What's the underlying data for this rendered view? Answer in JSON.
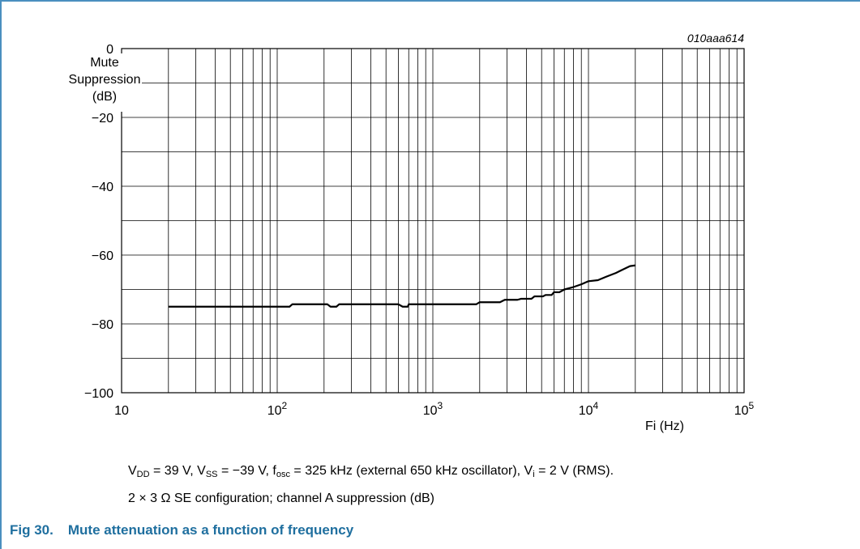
{
  "chart_data": {
    "type": "line",
    "figure_id": "010aaa614",
    "ylabel_lines": [
      "Mute",
      "Suppression",
      "(dB)"
    ],
    "xlabel": "Fi (Hz)",
    "x_scale": "log",
    "xlim": [
      10,
      100000
    ],
    "ylim": [
      -100,
      0
    ],
    "x_ticks": [
      {
        "value": 10,
        "base": "10",
        "exp": ""
      },
      {
        "value": 100,
        "base": "10",
        "exp": "2"
      },
      {
        "value": 1000,
        "base": "10",
        "exp": "3"
      },
      {
        "value": 10000,
        "base": "10",
        "exp": "4"
      },
      {
        "value": 100000,
        "base": "10",
        "exp": "5"
      }
    ],
    "y_ticks": [
      {
        "value": 0,
        "label": "0"
      },
      {
        "value": -20,
        "label": "−20"
      },
      {
        "value": -40,
        "label": "−40"
      },
      {
        "value": -60,
        "label": "−60"
      },
      {
        "value": -80,
        "label": "−80"
      },
      {
        "value": -100,
        "label": "−100"
      }
    ],
    "y_minor_step": 10,
    "grid": true,
    "series": [
      {
        "points": [
          [
            20,
            -75
          ],
          [
            60,
            -75
          ],
          [
            120,
            -75
          ],
          [
            125,
            -74.3
          ],
          [
            210,
            -74.3
          ],
          [
            220,
            -75
          ],
          [
            240,
            -75
          ],
          [
            250,
            -74.3
          ],
          [
            600,
            -74.3
          ],
          [
            640,
            -75
          ],
          [
            690,
            -75
          ],
          [
            700,
            -74.3
          ],
          [
            1900,
            -74.3
          ],
          [
            2000,
            -73.7
          ],
          [
            2700,
            -73.7
          ],
          [
            2900,
            -73
          ],
          [
            3500,
            -73
          ],
          [
            3700,
            -72.7
          ],
          [
            4300,
            -72.7
          ],
          [
            4500,
            -72
          ],
          [
            5100,
            -72
          ],
          [
            5300,
            -71.6
          ],
          [
            5800,
            -71.6
          ],
          [
            6000,
            -70.8
          ],
          [
            6500,
            -70.8
          ],
          [
            7000,
            -70
          ],
          [
            8000,
            -69.3
          ],
          [
            9000,
            -68.5
          ],
          [
            10000,
            -67.6
          ],
          [
            11500,
            -67.3
          ],
          [
            13000,
            -66.3
          ],
          [
            15000,
            -65.2
          ],
          [
            17000,
            -64
          ],
          [
            18500,
            -63.2
          ],
          [
            20000,
            -63
          ]
        ]
      }
    ]
  },
  "caption": {
    "line1": [
      {
        "t": "V"
      },
      {
        "t": "DD",
        "sub": true
      },
      {
        "t": " = 39 V, V"
      },
      {
        "t": "SS",
        "sub": true
      },
      {
        "t": " = −39 V, f"
      },
      {
        "t": "osc",
        "sub": true
      },
      {
        "t": " = 325 kHz (external 650 kHz oscillator), V"
      },
      {
        "t": "i",
        "sub": true
      },
      {
        "t": " = 2 V (RMS)."
      }
    ],
    "line2": "2 × 3 Ω SE configuration; channel A suppression (dB)"
  },
  "figure": {
    "number": "Fig 30.",
    "title": "Mute attenuation as a function of frequency"
  },
  "colors": {
    "accent": "#1f6f9f",
    "frame": "#4a8fbf",
    "grid": "#000000",
    "line": "#000000"
  }
}
